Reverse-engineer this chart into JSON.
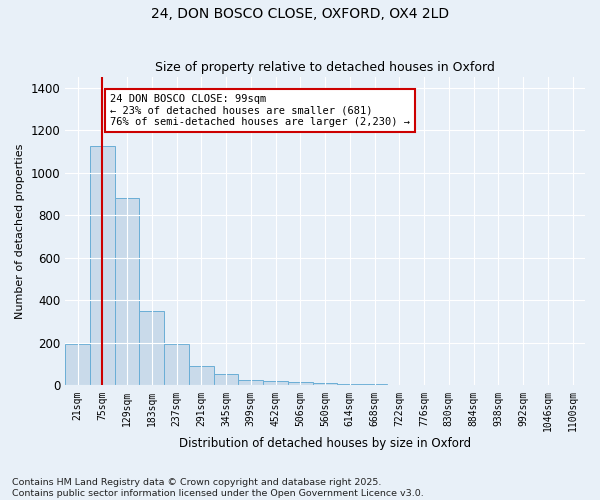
{
  "title_line1": "24, DON BOSCO CLOSE, OXFORD, OX4 2LD",
  "title_line2": "Size of property relative to detached houses in Oxford",
  "xlabel": "Distribution of detached houses by size in Oxford",
  "ylabel": "Number of detached properties",
  "bar_color": "#c9daea",
  "bar_edge_color": "#6aaed6",
  "vline_color": "#cc0000",
  "vline_x": 1.0,
  "background_color": "#e8f0f8",
  "grid_color": "#ffffff",
  "categories": [
    "21sqm",
    "75sqm",
    "129sqm",
    "183sqm",
    "237sqm",
    "291sqm",
    "345sqm",
    "399sqm",
    "452sqm",
    "506sqm",
    "560sqm",
    "614sqm",
    "668sqm",
    "722sqm",
    "776sqm",
    "830sqm",
    "884sqm",
    "938sqm",
    "992sqm",
    "1046sqm",
    "1100sqm"
  ],
  "values": [
    195,
    1125,
    880,
    350,
    195,
    90,
    55,
    25,
    20,
    15,
    12,
    8,
    5,
    3,
    2,
    0,
    0,
    0,
    0,
    0,
    0
  ],
  "ylim": [
    0,
    1450
  ],
  "yticks": [
    0,
    200,
    400,
    600,
    800,
    1000,
    1200,
    1400
  ],
  "annotation_text": "24 DON BOSCO CLOSE: 99sqm\n← 23% of detached houses are smaller (681)\n76% of semi-detached houses are larger (2,230) →",
  "annotation_box_color": "#ffffff",
  "annotation_box_edge": "#cc0000",
  "footnote": "Contains HM Land Registry data © Crown copyright and database right 2025.\nContains public sector information licensed under the Open Government Licence v3.0.",
  "title_fontsize": 10,
  "subtitle_fontsize": 9,
  "annotation_fontsize": 7.5,
  "footnote_fontsize": 6.8,
  "ylabel_fontsize": 8,
  "xlabel_fontsize": 8.5
}
